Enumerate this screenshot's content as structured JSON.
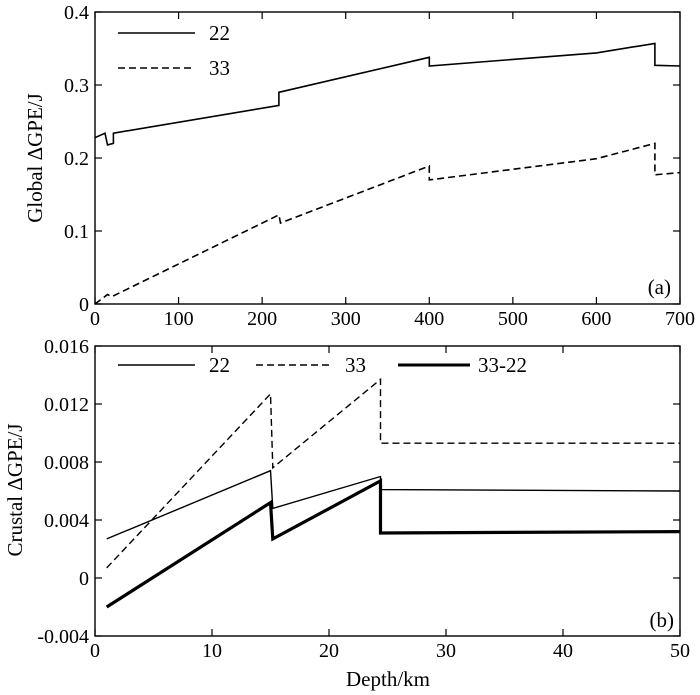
{
  "chart_data": [
    {
      "type": "line",
      "panel_label": "(a)",
      "title": "",
      "xlabel": "",
      "ylabel": "Global ΔGPE/J",
      "xlim": [
        0,
        700
      ],
      "ylim": [
        0,
        0.4
      ],
      "xticks": [
        0,
        100,
        200,
        300,
        400,
        500,
        600,
        700
      ],
      "xtick_labels": [
        "0",
        "100",
        "200",
        "300",
        "400",
        "500",
        "600",
        "700"
      ],
      "yticks": [
        0,
        0.1,
        0.2,
        0.3,
        0.4
      ],
      "ytick_labels": [
        "0",
        "0.1",
        "0.2",
        "0.3",
        "0.4"
      ],
      "legend_position": "top-left",
      "series": [
        {
          "name": "22",
          "style": "solid",
          "color": "#000000",
          "points": [
            [
              0,
              0.228
            ],
            [
              12,
              0.234
            ],
            [
              15,
              0.218
            ],
            [
              22,
              0.22
            ],
            [
              22,
              0.234
            ],
            [
              220,
              0.272
            ],
            [
              220,
              0.29
            ],
            [
              400,
              0.338
            ],
            [
              400,
              0.326
            ],
            [
              600,
              0.344
            ],
            [
              670,
              0.357
            ],
            [
              670,
              0.327
            ],
            [
              700,
              0.326
            ]
          ]
        },
        {
          "name": "33",
          "style": "dashed",
          "color": "#000000",
          "points": [
            [
              0,
              0.0
            ],
            [
              15,
              0.013
            ],
            [
              20,
              0.01
            ],
            [
              220,
              0.122
            ],
            [
              222,
              0.111
            ],
            [
              400,
              0.189
            ],
            [
              400,
              0.17
            ],
            [
              600,
              0.199
            ],
            [
              670,
              0.22
            ],
            [
              670,
              0.177
            ],
            [
              700,
              0.18
            ]
          ]
        }
      ]
    },
    {
      "type": "line",
      "panel_label": "(b)",
      "title": "",
      "xlabel": "Depth/km",
      "ylabel": "Crustal ΔGPE/J",
      "xlim": [
        0,
        50
      ],
      "ylim": [
        -0.004,
        0.016
      ],
      "xticks": [
        0,
        10,
        20,
        30,
        40,
        50
      ],
      "xtick_labels": [
        "0",
        "10",
        "20",
        "30",
        "40",
        "50"
      ],
      "yticks": [
        -0.004,
        0,
        0.004,
        0.008,
        0.012,
        0.016
      ],
      "ytick_labels": [
        "-0.004",
        "0",
        "0.004",
        "0.008",
        "0.012",
        "0.016"
      ],
      "legend_position": "top",
      "series": [
        {
          "name": "22",
          "style": "solid",
          "color": "#000000",
          "width": "thin",
          "points": [
            [
              1,
              0.0027
            ],
            [
              15,
              0.0074
            ],
            [
              15.2,
              0.0048
            ],
            [
              24.4,
              0.007
            ],
            [
              24.4,
              0.0061
            ],
            [
              50,
              0.006
            ]
          ]
        },
        {
          "name": "33",
          "style": "dashed",
          "color": "#000000",
          "width": "thin",
          "points": [
            [
              1,
              0.0007
            ],
            [
              15,
              0.0127
            ],
            [
              15.2,
              0.0076
            ],
            [
              24.4,
              0.0137
            ],
            [
              24.4,
              0.0093
            ],
            [
              50,
              0.0093
            ]
          ]
        },
        {
          "name": "33-22",
          "style": "solid",
          "color": "#000000",
          "width": "thick",
          "points": [
            [
              1,
              -0.002
            ],
            [
              15,
              0.0052
            ],
            [
              15.2,
              0.0027
            ],
            [
              24.4,
              0.0067
            ],
            [
              24.4,
              0.0031
            ],
            [
              50,
              0.0032
            ]
          ]
        }
      ]
    }
  ]
}
